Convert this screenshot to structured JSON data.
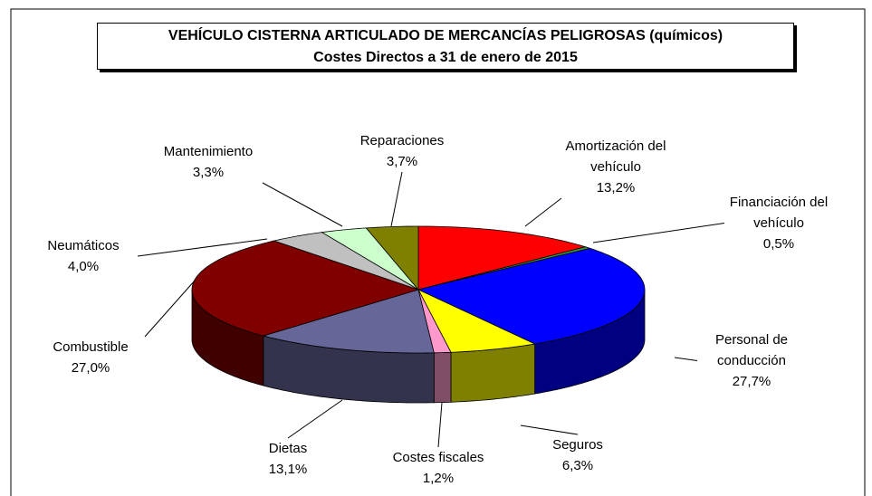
{
  "chart_data": {
    "type": "pie3d",
    "title": "VEHÍCULO CISTERNA ARTICULADO DE MERCANCÍAS PELIGROSAS (químicos)",
    "subtitle": "Costes Directos a 31 de enero de 2015",
    "categories": [
      "Amortización del vehículo",
      "Financiación del vehículo",
      "Personal de conducción",
      "Seguros",
      "Costes fiscales",
      "Dietas",
      "Combustible",
      "Neumáticos",
      "Mantenimiento",
      "Reparaciones"
    ],
    "values": [
      13.2,
      0.5,
      27.7,
      6.3,
      1.2,
      13.1,
      27.0,
      4.0,
      3.3,
      3.7
    ],
    "value_labels": [
      "13,2%",
      "0,5%",
      "27,7%",
      "6,3%",
      "1,2%",
      "13,1%",
      "27,0%",
      "4,0%",
      "3,3%",
      "3,7%"
    ],
    "colors": [
      "#ff0000",
      "#339933",
      "#0000ff",
      "#ffff00",
      "#ff99cc",
      "#666699",
      "#800000",
      "#c0c0c0",
      "#ccffcc",
      "#808000"
    ]
  }
}
